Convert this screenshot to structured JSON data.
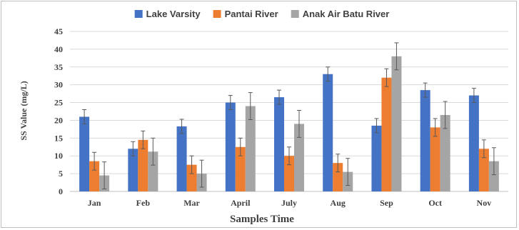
{
  "chart_data": {
    "type": "bar",
    "title": "",
    "xlabel": "Samples Time",
    "ylabel": "SS Value (mg/L)",
    "ylim": [
      0,
      45
    ],
    "yticks": [
      0,
      5,
      10,
      15,
      20,
      25,
      30,
      35,
      40,
      45
    ],
    "grid": true,
    "legend_position": "top",
    "categories": [
      "Jan",
      "Feb",
      "Mar",
      "April",
      "July",
      "Aug",
      "Sep",
      "Oct",
      "Nov"
    ],
    "series": [
      {
        "name": "Lake Varsity",
        "color": "#4472C4",
        "values": [
          21,
          12,
          18.3,
          25,
          26.5,
          33,
          18.5,
          28.5,
          27
        ],
        "error": [
          2,
          2,
          2,
          2,
          2,
          2,
          2,
          2,
          2
        ]
      },
      {
        "name": "Pantai River",
        "color": "#ED7D31",
        "values": [
          8.5,
          14.5,
          7.5,
          12.5,
          10,
          8,
          32,
          18,
          12
        ],
        "error": [
          2.5,
          2.5,
          2.5,
          2.5,
          2.5,
          2.5,
          2.5,
          2.5,
          2.5
        ]
      },
      {
        "name": "Anak Air Batu River",
        "color": "#A5A5A5",
        "values": [
          4.5,
          11.2,
          5,
          24,
          19,
          5.5,
          38,
          21.5,
          8.5
        ],
        "error": [
          3.8,
          3.8,
          3.8,
          3.8,
          3.8,
          3.8,
          3.8,
          3.8,
          3.8
        ]
      }
    ]
  }
}
